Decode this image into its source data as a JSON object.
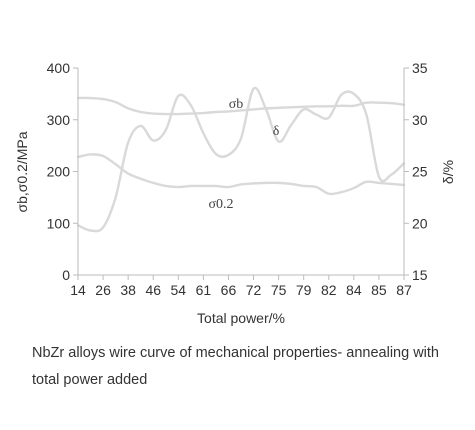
{
  "chart_data": {
    "type": "line",
    "xlabel": "Total power/%",
    "ylabel_left": "σb,σ0.2/MPa",
    "ylabel_right": "δ/%",
    "x_ticks": [
      "14",
      "26",
      "38",
      "46",
      "54",
      "61",
      "66",
      "72",
      "75",
      "79",
      "82",
      "84",
      "85",
      "87"
    ],
    "ylim_left": [
      0,
      400
    ],
    "ylim_right": [
      15,
      35
    ],
    "yticks_left": [
      "0",
      "100",
      "200",
      "300",
      "400"
    ],
    "yticks_right": [
      "15",
      "20",
      "25",
      "30",
      "35"
    ],
    "grid": false,
    "series_color": "#d9d9d9",
    "series": [
      {
        "name": "σb",
        "axis": "left",
        "points": [
          [
            0,
            342
          ],
          [
            0.5,
            342
          ],
          [
            1,
            340
          ],
          [
            1.5,
            334
          ],
          [
            2,
            322
          ],
          [
            2.5,
            315
          ],
          [
            3,
            312
          ],
          [
            3.5,
            311
          ],
          [
            4,
            311
          ],
          [
            4.5,
            312
          ],
          [
            5,
            313
          ],
          [
            5.5,
            315
          ],
          [
            6,
            316
          ],
          [
            6.5,
            318
          ],
          [
            7,
            320
          ],
          [
            7.5,
            322
          ],
          [
            8,
            323
          ],
          [
            8.5,
            324
          ],
          [
            9,
            325
          ],
          [
            9.5,
            326
          ],
          [
            10,
            326
          ],
          [
            10.5,
            327
          ],
          [
            11,
            327
          ],
          [
            11.5,
            333
          ],
          [
            12,
            333
          ],
          [
            12.5,
            332
          ],
          [
            13,
            329
          ]
        ]
      },
      {
        "name": "σ0.2",
        "axis": "left",
        "points": [
          [
            0,
            228
          ],
          [
            0.5,
            233
          ],
          [
            1,
            230
          ],
          [
            1.5,
            214
          ],
          [
            2,
            196
          ],
          [
            2.5,
            186
          ],
          [
            3,
            178
          ],
          [
            3.5,
            172
          ],
          [
            4,
            170
          ],
          [
            4.5,
            172
          ],
          [
            5,
            172
          ],
          [
            5.5,
            172
          ],
          [
            6,
            170
          ],
          [
            6.5,
            175
          ],
          [
            7,
            177
          ],
          [
            7.5,
            178
          ],
          [
            8,
            178
          ],
          [
            8.5,
            176
          ],
          [
            9,
            172
          ],
          [
            9.5,
            170
          ],
          [
            10,
            157
          ],
          [
            10.5,
            160
          ],
          [
            11,
            168
          ],
          [
            11.5,
            180
          ],
          [
            12,
            178
          ],
          [
            12.5,
            176
          ],
          [
            13,
            174
          ]
        ]
      },
      {
        "name": "δ",
        "axis": "right",
        "points": [
          [
            0,
            19.8
          ],
          [
            0.5,
            19.3
          ],
          [
            1,
            19.6
          ],
          [
            1.5,
            22.5
          ],
          [
            2,
            27.8
          ],
          [
            2.5,
            29.4
          ],
          [
            3,
            28.0
          ],
          [
            3.5,
            29.0
          ],
          [
            4,
            32.3
          ],
          [
            4.5,
            31.4
          ],
          [
            5,
            28.7
          ],
          [
            5.5,
            26.7
          ],
          [
            6,
            26.6
          ],
          [
            6.5,
            28.2
          ],
          [
            7,
            33.0
          ],
          [
            7.5,
            31.0
          ],
          [
            8,
            27.9
          ],
          [
            8.5,
            29.5
          ],
          [
            9,
            31.0
          ],
          [
            9.5,
            30.5
          ],
          [
            10,
            30.2
          ],
          [
            10.5,
            32.4
          ],
          [
            11,
            32.5
          ],
          [
            11.5,
            30.5
          ],
          [
            12,
            24.5
          ],
          [
            12.5,
            24.7
          ],
          [
            13,
            25.8
          ]
        ]
      }
    ]
  },
  "caption": "NbZr alloys wire curve of mechanical properties- annealing with total power added"
}
